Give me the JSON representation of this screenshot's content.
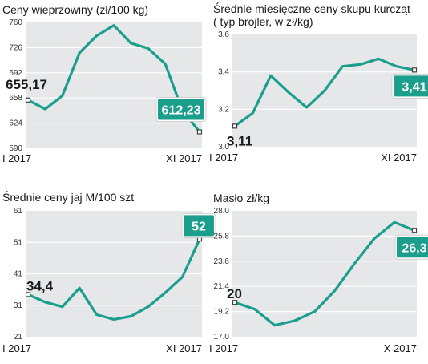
{
  "colors": {
    "line": "#1b9e8c",
    "panel": "#e6e7e8",
    "badge": "#1b9e8c",
    "badge_border": "#d0d0d0",
    "marker": "#404040"
  },
  "chart_data": [
    {
      "type": "line",
      "title": "Ceny wieprzowiny (zł/100 kg)",
      "subtitle": "",
      "x_start_label": "I 2017",
      "x_end_label": "XI 2017",
      "yticks": [
        "760",
        "726",
        "692",
        "658",
        "624",
        "590"
      ],
      "ylim": [
        590,
        760
      ],
      "grid": true,
      "values": [
        655.17,
        643,
        661,
        719,
        742,
        756,
        732,
        725,
        704,
        641,
        612.23
      ],
      "start_value_label": "655,17",
      "end_value_label": "612,23"
    },
    {
      "type": "line",
      "title": "Średnie miesięczne ceny skupu kurcząt",
      "subtitle": "( typ brojler, w zł/kg)",
      "x_start_label": "I 2017",
      "x_end_label": "XI 2017",
      "yticks": [
        "3.6",
        "3.4",
        "3.2",
        "3.0"
      ],
      "ylim": [
        3.0,
        3.6
      ],
      "grid": true,
      "values": [
        3.11,
        3.18,
        3.38,
        3.29,
        3.21,
        3.3,
        3.43,
        3.44,
        3.47,
        3.43,
        3.41
      ],
      "start_value_label": "3,11",
      "end_value_label": "3,41"
    },
    {
      "type": "line",
      "title": "Średnie ceny jaj M/100 szt",
      "subtitle": "",
      "x_start_label": "I 2017",
      "x_end_label": "XI 2017",
      "yticks": [
        "61",
        "51",
        "41",
        "31",
        "21"
      ],
      "ylim": [
        21,
        61
      ],
      "grid": true,
      "values": [
        34.4,
        32.0,
        30.5,
        36.5,
        28.0,
        26.5,
        27.5,
        30.5,
        35.0,
        40.0,
        52.0
      ],
      "start_value_label": "34,4",
      "end_value_label": "52"
    },
    {
      "type": "line",
      "title": "Masło zł/kg",
      "subtitle": "",
      "x_start_label": "I 2017",
      "x_end_label": "X 2017",
      "yticks": [
        "28.0",
        "25.8",
        "23.6",
        "21.4",
        "19.2",
        "17.0"
      ],
      "ylim": [
        17.0,
        28.0
      ],
      "grid": true,
      "values": [
        20.0,
        19.4,
        18.0,
        18.4,
        19.2,
        21.0,
        23.4,
        25.6,
        27.0,
        26.3
      ],
      "start_value_label": "20",
      "end_value_label": "26,3"
    }
  ]
}
